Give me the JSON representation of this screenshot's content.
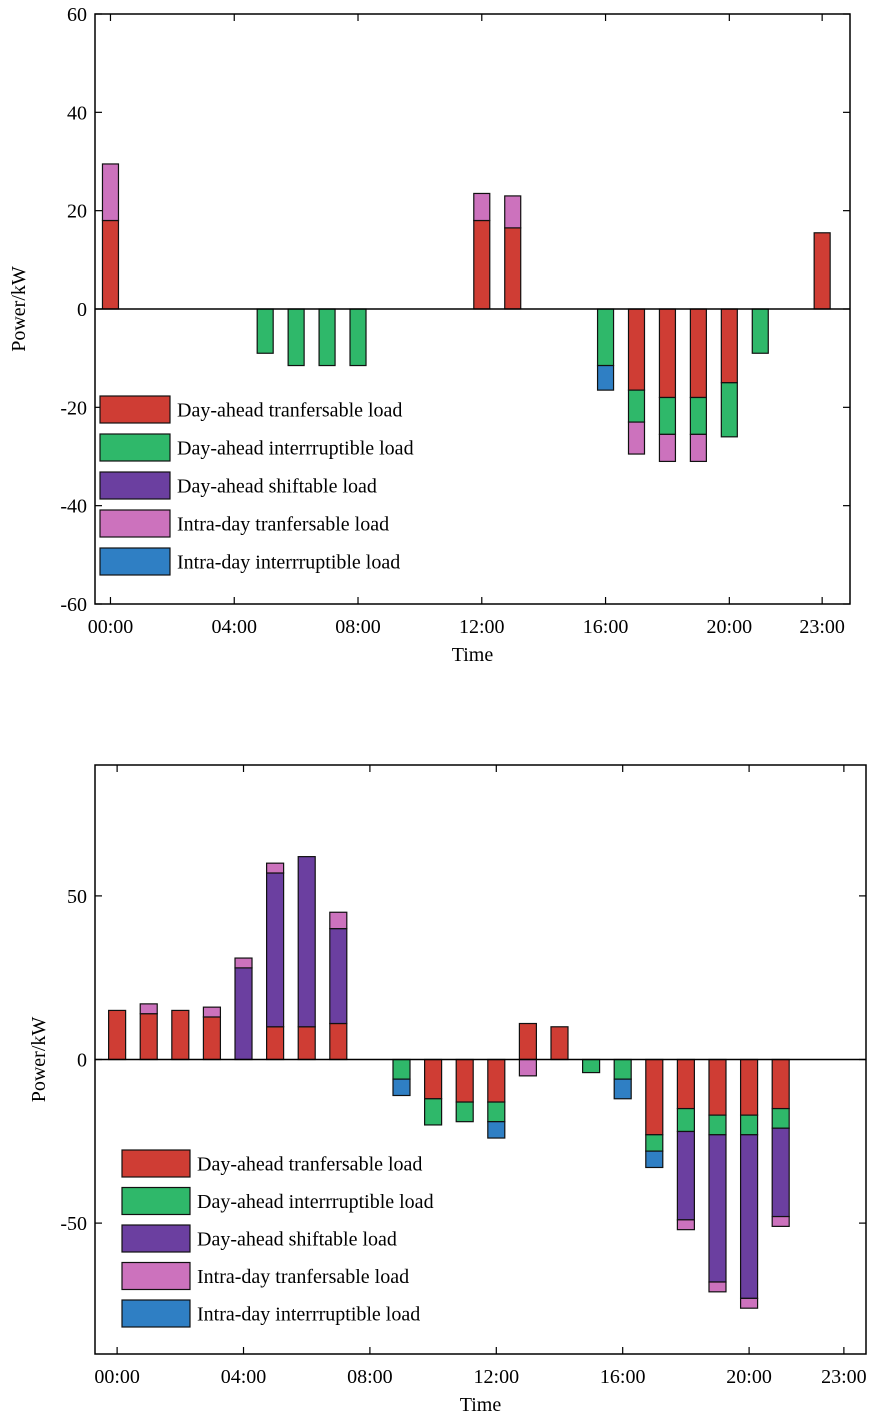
{
  "colors": {
    "da_transferable": "#cf3d34",
    "da_interruptible": "#2fb86a",
    "da_shiftable": "#6b3fa0",
    "id_transferable": "#cc72bd",
    "id_interruptible": "#2f7fc4"
  },
  "chart_data": [
    {
      "type": "bar",
      "stacked": true,
      "xlabel": "Time",
      "ylabel": "Power/kW",
      "ylim": [
        -60,
        60
      ],
      "yticks": [
        -60,
        -40,
        -20,
        0,
        20,
        40,
        60
      ],
      "x_range": [
        -0.5,
        23.9
      ],
      "x_ticks": [
        {
          "value": 0,
          "label": "00:00"
        },
        {
          "value": 4,
          "label": "04:00"
        },
        {
          "value": 8,
          "label": "08:00"
        },
        {
          "value": 12,
          "label": "12:00"
        },
        {
          "value": 16,
          "label": "16:00"
        },
        {
          "value": 20,
          "label": "20:00"
        },
        {
          "value": 23,
          "label": "23:00"
        }
      ],
      "legend_position": "bottom-left",
      "series": [
        {
          "name": "Day-ahead tranfersable load",
          "color_key": "da_transferable",
          "values": [
            18,
            0,
            0,
            0,
            0,
            0,
            0,
            0,
            0,
            0,
            0,
            0,
            18,
            16.5,
            0,
            0,
            0,
            -16.5,
            -18,
            -18,
            -15,
            0,
            0,
            15.5
          ]
        },
        {
          "name": "Day-ahead interrruptible load",
          "color_key": "da_interruptible",
          "values": [
            0,
            0,
            0,
            0,
            0,
            -9,
            -11.5,
            -11.5,
            -11.5,
            0,
            0,
            0,
            0,
            0,
            0,
            0,
            -11.5,
            -6.5,
            -7.5,
            -7.5,
            -11,
            -9,
            0,
            0
          ]
        },
        {
          "name": "Day-ahead shiftable load",
          "color_key": "da_shiftable",
          "values": [
            0,
            0,
            0,
            0,
            0,
            0,
            0,
            0,
            0,
            0,
            0,
            0,
            0,
            0,
            0,
            0,
            0,
            0,
            0,
            0,
            0,
            0,
            0,
            0
          ]
        },
        {
          "name": "Intra-day tranfersable load",
          "color_key": "id_transferable",
          "values": [
            11.5,
            0,
            0,
            0,
            0,
            0,
            0,
            0,
            0,
            0,
            0,
            0,
            5.5,
            6.5,
            0,
            0,
            0,
            -6.5,
            -5.5,
            -5.5,
            0,
            0,
            0,
            0
          ]
        },
        {
          "name": "Intra-day interrruptible load",
          "color_key": "id_interruptible",
          "values": [
            0,
            0,
            0,
            0,
            0,
            0,
            0,
            0,
            0,
            0,
            0,
            0,
            0,
            0,
            0,
            0,
            -5,
            0,
            0,
            0,
            0,
            0,
            0,
            0
          ]
        }
      ]
    },
    {
      "type": "bar",
      "stacked": true,
      "xlabel": "Time",
      "ylabel": "Power/kW",
      "ylim": [
        -90,
        90
      ],
      "yticks": [
        -50,
        0,
        50
      ],
      "x_range": [
        -0.7,
        23.7
      ],
      "x_ticks": [
        {
          "value": 0,
          "label": "00:00"
        },
        {
          "value": 4,
          "label": "04:00"
        },
        {
          "value": 8,
          "label": "08:00"
        },
        {
          "value": 12,
          "label": "12:00"
        },
        {
          "value": 16,
          "label": "16:00"
        },
        {
          "value": 20,
          "label": "20:00"
        },
        {
          "value": 23,
          "label": "23:00"
        }
      ],
      "legend_position": "bottom-left",
      "series": [
        {
          "name": "Day-ahead tranfersable load",
          "color_key": "da_transferable",
          "values": [
            15,
            14,
            15,
            13,
            0,
            10,
            10,
            11,
            0,
            0,
            -12,
            -13,
            -13,
            11,
            10,
            0,
            0,
            -23,
            -15,
            -17,
            -17,
            -15,
            0,
            0
          ]
        },
        {
          "name": "Day-ahead interrruptible load",
          "color_key": "da_interruptible",
          "values": [
            0,
            0,
            0,
            0,
            0,
            0,
            0,
            0,
            0,
            -6,
            -8,
            -6,
            -6,
            0,
            0,
            -4,
            -6,
            -5,
            -7,
            -6,
            -6,
            -6,
            0,
            0
          ]
        },
        {
          "name": "Day-ahead shiftable load",
          "color_key": "da_shiftable",
          "values": [
            0,
            0,
            0,
            0,
            28,
            47,
            52,
            29,
            0,
            0,
            0,
            0,
            0,
            0,
            0,
            0,
            0,
            0,
            -27,
            -45,
            -50,
            -27,
            0,
            0
          ]
        },
        {
          "name": "Intra-day tranfersable load",
          "color_key": "id_transferable",
          "values": [
            0,
            3,
            0,
            3,
            3,
            3,
            0,
            5,
            0,
            0,
            0,
            0,
            0,
            -5,
            0,
            0,
            0,
            0,
            -3,
            -3,
            -3,
            -3,
            0,
            0
          ]
        },
        {
          "name": "Intra-day interrruptible load",
          "color_key": "id_interruptible",
          "values": [
            0,
            0,
            0,
            0,
            0,
            0,
            0,
            0,
            0,
            -5,
            0,
            0,
            -5,
            0,
            0,
            0,
            -6,
            -5,
            0,
            0,
            0,
            0,
            0,
            0
          ]
        }
      ]
    }
  ]
}
